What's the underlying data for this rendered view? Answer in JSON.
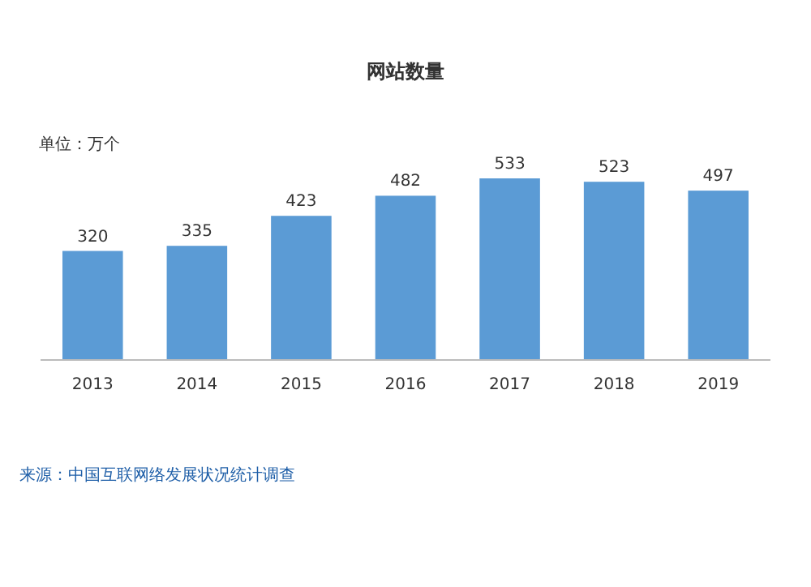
{
  "chart_data": {
    "type": "bar",
    "title": "网站数量",
    "subtitle": "单位：万个",
    "categories": [
      "2013",
      "2014",
      "2015",
      "2016",
      "2017",
      "2018",
      "2019"
    ],
    "values": [
      320,
      335,
      423,
      482,
      533,
      523,
      497
    ],
    "color": "#5b9bd5",
    "data_labels": true,
    "annotations": [
      "来源：中国互联网络发展状况统计调查"
    ]
  }
}
